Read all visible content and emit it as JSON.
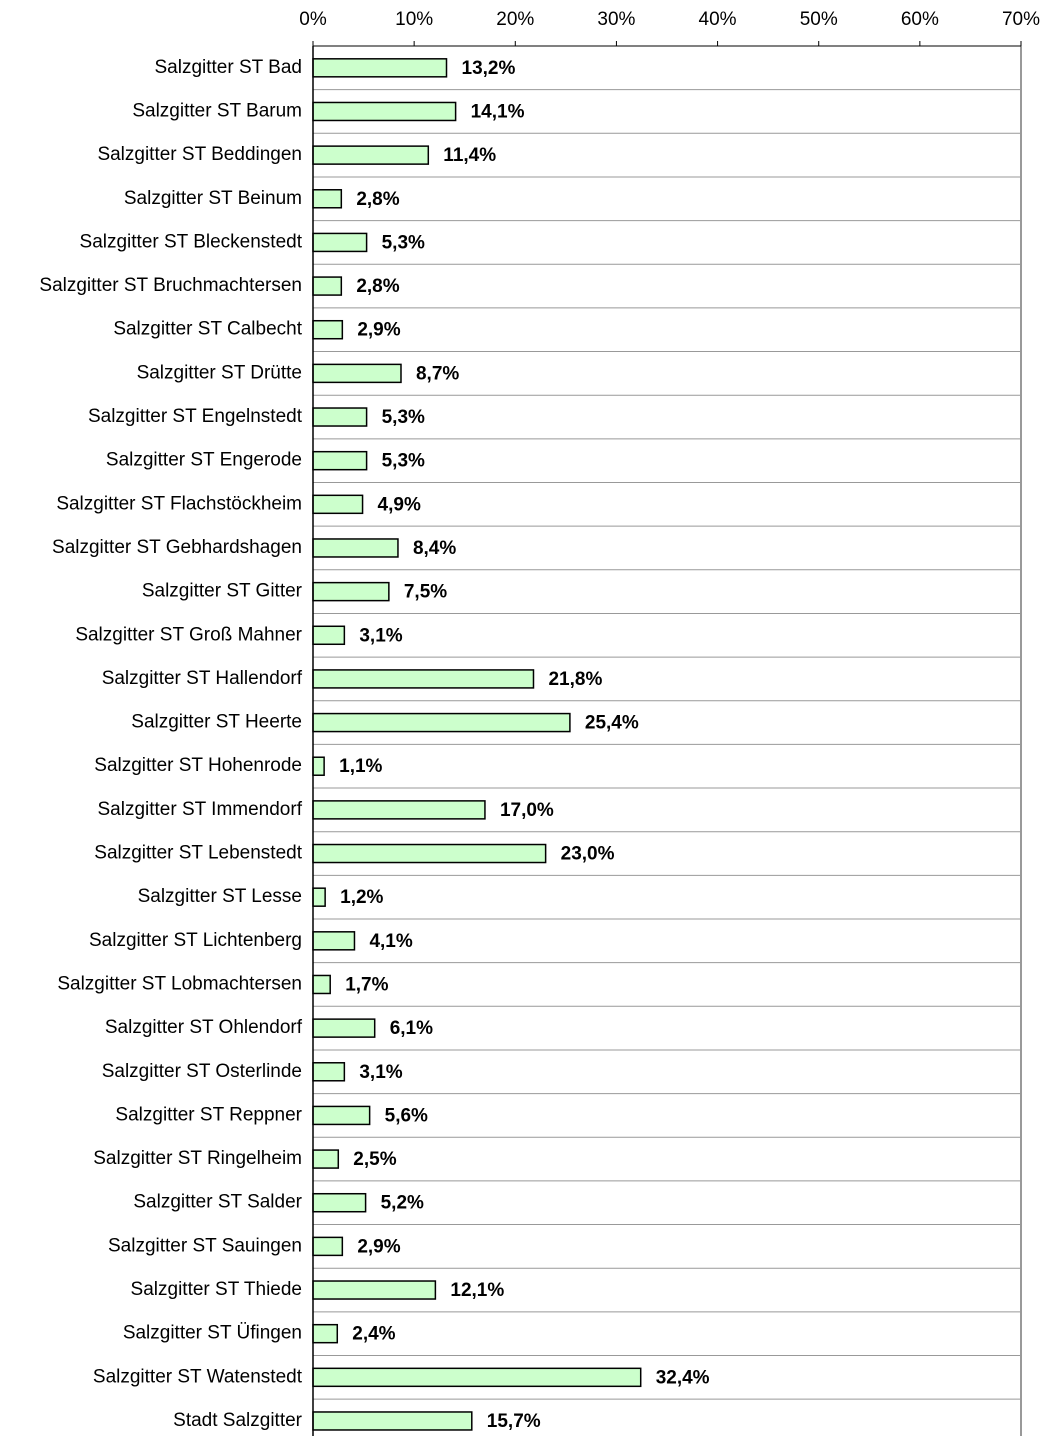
{
  "chart_data": {
    "type": "bar",
    "orientation": "horizontal",
    "categories": [
      "Salzgitter ST Bad",
      "Salzgitter ST Barum",
      "Salzgitter ST Beddingen",
      "Salzgitter ST Beinum",
      "Salzgitter ST Bleckenstedt",
      "Salzgitter ST Bruchmachtersen",
      "Salzgitter ST Calbecht",
      "Salzgitter ST Drütte",
      "Salzgitter ST Engelnstedt",
      "Salzgitter ST Engerode",
      "Salzgitter ST Flachstöckheim",
      "Salzgitter ST Gebhardshagen",
      "Salzgitter ST Gitter",
      "Salzgitter ST Groß Mahner",
      "Salzgitter ST Hallendorf",
      "Salzgitter ST Heerte",
      "Salzgitter ST Hohenrode",
      "Salzgitter ST Immendorf",
      "Salzgitter ST Lebenstedt",
      "Salzgitter ST Lesse",
      "Salzgitter ST Lichtenberg",
      "Salzgitter ST Lobmachtersen",
      "Salzgitter ST Ohlendorf",
      "Salzgitter ST Osterlinde",
      "Salzgitter ST Reppner",
      "Salzgitter ST Ringelheim",
      "Salzgitter ST Salder",
      "Salzgitter ST Sauingen",
      "Salzgitter ST Thiede",
      "Salzgitter ST Üfingen",
      "Salzgitter ST Watenstedt",
      "Stadt Salzgitter"
    ],
    "values": [
      13.2,
      14.1,
      11.4,
      2.8,
      5.3,
      2.8,
      2.9,
      8.7,
      5.3,
      5.3,
      4.9,
      8.4,
      7.5,
      3.1,
      21.8,
      25.4,
      1.1,
      17.0,
      23.0,
      1.2,
      4.1,
      1.7,
      6.1,
      3.1,
      5.6,
      2.5,
      5.2,
      2.9,
      12.1,
      2.4,
      32.4,
      15.7
    ],
    "value_labels": [
      "13,2%",
      "14,1%",
      "11,4%",
      "2,8%",
      "5,3%",
      "2,8%",
      "2,9%",
      "8,7%",
      "5,3%",
      "5,3%",
      "4,9%",
      "8,4%",
      "7,5%",
      "3,1%",
      "21,8%",
      "25,4%",
      "1,1%",
      "17,0%",
      "23,0%",
      "1,2%",
      "4,1%",
      "1,7%",
      "6,1%",
      "3,1%",
      "5,6%",
      "2,5%",
      "5,2%",
      "2,9%",
      "12,1%",
      "2,4%",
      "32,4%",
      "15,7%"
    ],
    "color": "#ccffcc",
    "xlim": [
      0,
      70
    ],
    "xticks": [
      {
        "value": 0,
        "label": "0%"
      },
      {
        "value": 10,
        "label": "10%"
      },
      {
        "value": 20,
        "label": "20%"
      },
      {
        "value": 30,
        "label": "30%"
      },
      {
        "value": 40,
        "label": "40%"
      },
      {
        "value": 50,
        "label": "50%"
      },
      {
        "value": 60,
        "label": "60%"
      },
      {
        "value": 70,
        "label": "70%"
      }
    ]
  }
}
